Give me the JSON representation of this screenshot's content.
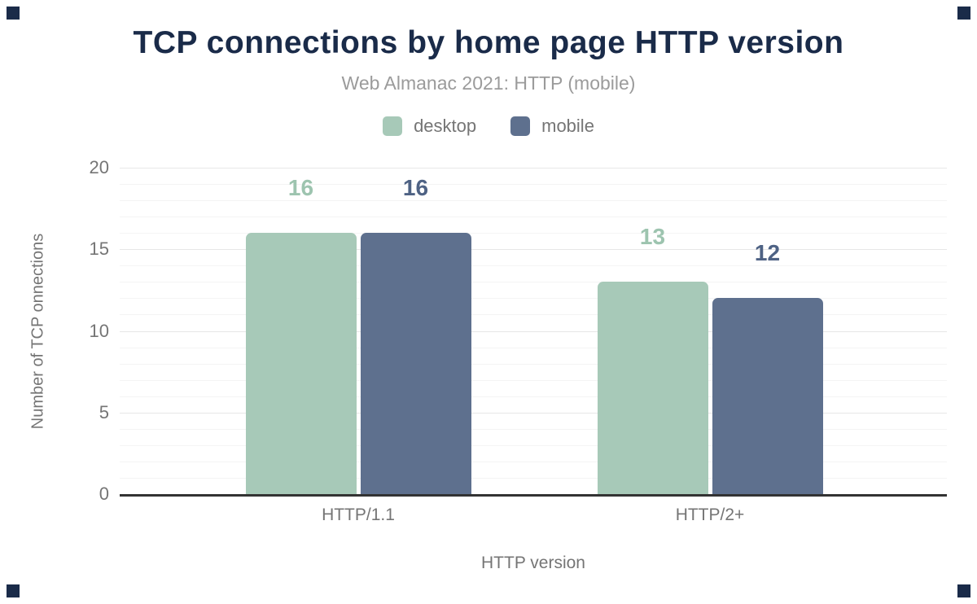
{
  "chart_data": {
    "type": "bar",
    "title": "TCP connections by home page HTTP version",
    "subtitle": "Web Almanac 2021: HTTP (mobile)",
    "categories": [
      "HTTP/1.1",
      "HTTP/2+"
    ],
    "series": [
      {
        "name": "desktop",
        "values": [
          16,
          13
        ],
        "color": "#a7c9b8",
        "label_color": "#9dc4af"
      },
      {
        "name": "mobile",
        "values": [
          16,
          12
        ],
        "color": "#5e708e",
        "label_color": "#4e6284"
      }
    ],
    "xlabel": "HTTP version",
    "ylabel": "Number of TCP onnections",
    "ylim": [
      0,
      20
    ],
    "yticks": [
      0,
      5,
      10,
      15,
      20
    ],
    "minor_grid_step": 1,
    "legend_position": "top",
    "grid": true
  },
  "colors": {
    "title": "#1a2b49",
    "subtitle": "#9b9b9b",
    "axis_text": "#757575",
    "baseline": "#333333",
    "grid_major": "#e7e7e7",
    "grid_minor": "#f4f4f4",
    "background": "#ffffff",
    "corner_marker": "#1a2b49"
  }
}
